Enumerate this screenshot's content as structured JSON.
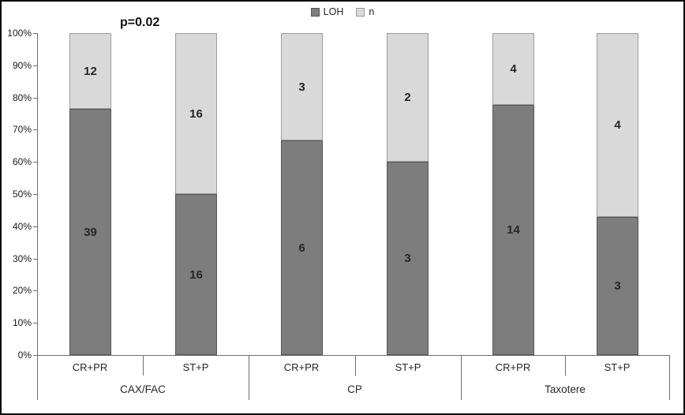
{
  "chart_data": {
    "type": "bar",
    "subtype": "100-percent-stacked-column",
    "title": "",
    "annotation": "p=0.02",
    "grid": false,
    "legend": {
      "position": "top",
      "entries": [
        {
          "name": "LOH"
        },
        {
          "name": "n"
        }
      ]
    },
    "y_axis": {
      "min": 0,
      "max": 100,
      "tick_step": 10,
      "tick_labels": [
        "0%",
        "10%",
        "20%",
        "30%",
        "40%",
        "50%",
        "60%",
        "70%",
        "80%",
        "90%",
        "100%"
      ]
    },
    "categories": [
      "CR+PR",
      "ST+P",
      "CR+PR",
      "ST+P",
      "CR+PR",
      "ST+P"
    ],
    "group_labels": [
      "CAX/FAC",
      "CP",
      "Taxotere"
    ],
    "series": [
      {
        "name": "LOH",
        "values": [
          39,
          16,
          6,
          3,
          14,
          3
        ]
      },
      {
        "name": "n",
        "values": [
          12,
          16,
          3,
          2,
          4,
          4
        ]
      }
    ],
    "groups": [
      {
        "label": "CAX/FAC",
        "bars": [
          {
            "label": "CR+PR",
            "segments": {
              "LOH": 39,
              "n": 12
            }
          },
          {
            "label": "ST+P",
            "segments": {
              "LOH": 16,
              "n": 16
            }
          }
        ]
      },
      {
        "label": "CP",
        "bars": [
          {
            "label": "CR+PR",
            "segments": {
              "LOH": 6,
              "n": 3
            }
          },
          {
            "label": "ST+P",
            "segments": {
              "LOH": 3,
              "n": 2
            }
          }
        ]
      },
      {
        "label": "Taxotere",
        "bars": [
          {
            "label": "CR+PR",
            "segments": {
              "LOH": 14,
              "n": 4
            }
          },
          {
            "label": "ST+P",
            "segments": {
              "LOH": 3,
              "n": 4
            }
          }
        ]
      }
    ]
  },
  "colors": {
    "loh_fill": "#7d7d7d",
    "loh_border": "#565656",
    "n_fill": "#d9d9d9",
    "n_border": "#9c9c9c",
    "axis": "#6e6e6e",
    "text": "#262626",
    "frame_border": "#0a0a0a"
  }
}
